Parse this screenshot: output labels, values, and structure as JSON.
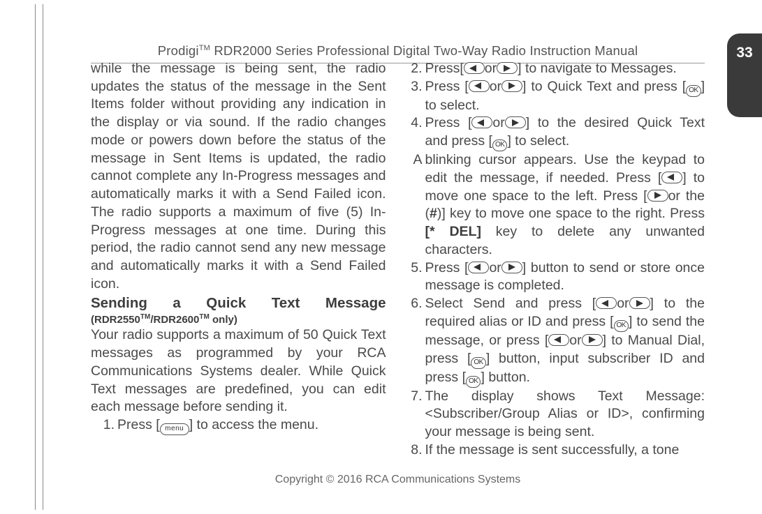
{
  "page_number": "33",
  "header": {
    "brand": "Prodigi",
    "tm": "TM",
    "title_rest": " RDR2000 Series Professional Digital Two-Way Radio Instruction Manual"
  },
  "left_col": {
    "para1": "while the message is being sent, the radio updates the status of the message in the Sent Items folder without providing any indication in the display or via sound. If the radio changes mode or powers down before the status of the message in Sent Items is updated, the radio cannot complete any In-Progress messages and automatically marks it with a Send Failed icon. The radio supports a maximum of five (5) In-Progress messages at one time. During this period, the radio cannot send any new message and automatically marks it with a Send Failed icon.",
    "heading": "Sending a Quick Text Message",
    "subheading_pre": "(RDR2550",
    "subheading_mid": "/RDR2600",
    "subheading_post": " only)",
    "para2": "Your radio supports a maximum of 50 Quick Text messages as programmed by your RCA Communications Systems dealer. While Quick Text messages are predefined, you can edit each message before sending it.",
    "step1_a": "Press [",
    "step1_b": "] to access the menu."
  },
  "right_col": {
    "step2_a": "Press[",
    "step2_b": "or",
    "step2_c": "] to navigate to Messages.",
    "step3_a": "Press [",
    "step3_b": "or",
    "step3_c": "] to Quick Text and press [",
    "step3_d": "] to select.",
    "step4_a": "Press [",
    "step4_b": "or",
    "step4_c": "] to the desired Quick Text and press [",
    "step4_d": "] to select.",
    "paraA_a": "blinking cursor appears. Use the keypad to edit the message, if needed. Press [",
    "paraA_b": "] to move one space to the left. Press [",
    "paraA_c": "or the (",
    "paraA_hash": "#",
    "paraA_d": ")] key to move one space to the right. Press ",
    "paraA_del": "[* DEL]",
    "paraA_e": " key to delete any unwanted characters.",
    "step5_a": "Press [",
    "step5_b": "or",
    "step5_c": "] button to send or store once message is completed.",
    "step6_a": "Select Send and press [",
    "step6_b": "or",
    "step6_c": "] to the required alias or ID and press [",
    "step6_d": "] to send the message, or press [",
    "step6_e": "or",
    "step6_f": "] to Manual Dial, press [",
    "step6_g": "] button, input subscriber ID and press [",
    "step6_h": "] button.",
    "step7": "The display shows Text Message: <Subscriber/Group Alias or ID>, confirming your message is being sent.",
    "step8": "If the message is sent successfully, a tone"
  },
  "buttons": {
    "menu": "menu",
    "ok": "OK"
  },
  "footer": "Copyright © 2016 RCA Communications Systems"
}
